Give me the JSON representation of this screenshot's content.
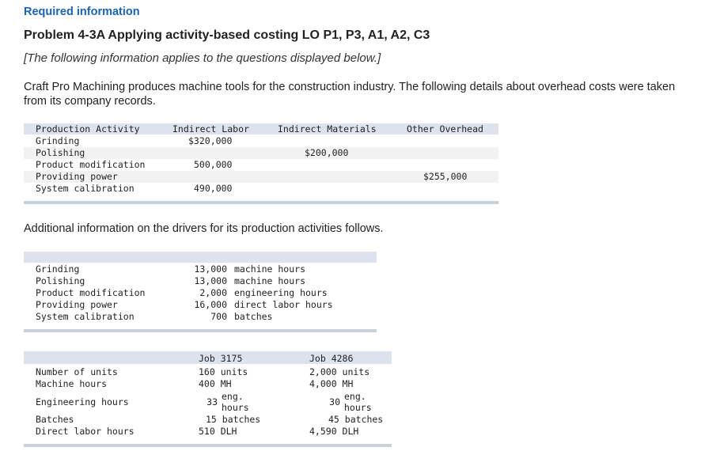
{
  "header": {
    "required": "Required information",
    "title": "Problem 4-3A Applying activity-based costing LO P1, P3, A1, A2, C3",
    "note": "[The following information applies to the questions displayed below.]",
    "intro": "Craft Pro Machining produces machine tools for the construction industry. The following details about overhead costs were taken from its company records."
  },
  "costs_table": {
    "headers": [
      "Production Activity",
      "Indirect Labor",
      "Indirect Materials",
      "Other Overhead"
    ],
    "rows": [
      {
        "activity": "Grinding",
        "labor": "$320,000",
        "materials": "",
        "other": ""
      },
      {
        "activity": "Polishing",
        "labor": "",
        "materials": "$200,000",
        "other": ""
      },
      {
        "activity": "Product modification",
        "labor": "500,000",
        "materials": "",
        "other": ""
      },
      {
        "activity": "Providing power",
        "labor": "",
        "materials": "",
        "other": "$255,000"
      },
      {
        "activity": "System calibration",
        "labor": "490,000",
        "materials": "",
        "other": ""
      }
    ]
  },
  "additional_text": "Additional information on the drivers for its production activities follows.",
  "drivers_table": {
    "rows": [
      {
        "activity": "Grinding",
        "qty": "13,000",
        "driver": "machine hours"
      },
      {
        "activity": "Polishing",
        "qty": "13,000",
        "driver": "machine hours"
      },
      {
        "activity": "Product modification",
        "qty": "2,000",
        "driver": "engineering hours"
      },
      {
        "activity": "Providing power",
        "qty": "16,000",
        "driver": "direct labor hours"
      },
      {
        "activity": "System calibration",
        "qty": "700",
        "driver": "batches"
      }
    ]
  },
  "jobs_table": {
    "headers": [
      "Job 3175",
      "Job 4286"
    ],
    "rows": {
      "units": {
        "label": "Number of units",
        "j1": "160 units",
        "j2": "2,000 units"
      },
      "machine": {
        "label": "Machine hours",
        "j1": "400 MH",
        "j2": "4,000 MH"
      },
      "engineering": {
        "label": "Engineering hours",
        "j1_qty": "33",
        "j2_qty": "30",
        "unit_top": "eng.",
        "unit_bottom": "hours"
      },
      "batches": {
        "label": "Batches",
        "j1": "15 batches",
        "j2": "45 batches"
      },
      "dlh": {
        "label": "Direct labor hours",
        "j1": "510 DLH",
        "j2": "4,590 DLH"
      }
    }
  }
}
